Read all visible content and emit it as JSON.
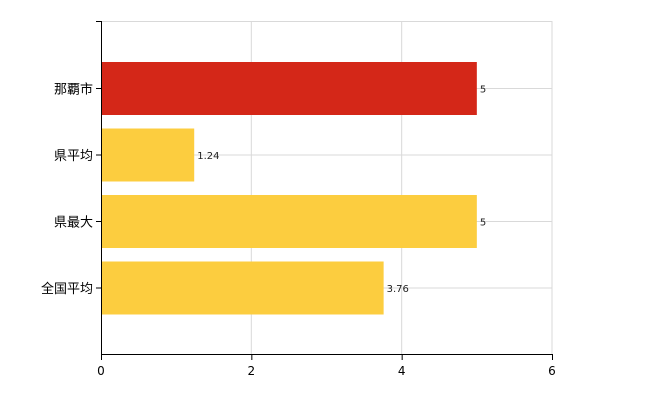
{
  "chart_data": {
    "type": "bar",
    "orientation": "horizontal",
    "title": "",
    "xlabel": "",
    "ylabel": "",
    "categories": [
      "那覇市",
      "県平均",
      "県最大",
      "全国平均"
    ],
    "values": [
      5,
      1.24,
      5,
      3.76
    ],
    "data_labels": [
      "5",
      "1.24",
      "5",
      "3.76"
    ],
    "bar_colors": [
      "#d42718",
      "#fccd3f",
      "#fccd3f",
      "#fccd3f"
    ],
    "xlim": [
      0,
      6
    ],
    "x_ticks": [
      0,
      2,
      4,
      6
    ],
    "x_tick_labels": [
      "0",
      "2",
      "4",
      "6"
    ],
    "grid": true,
    "legend": "none"
  }
}
